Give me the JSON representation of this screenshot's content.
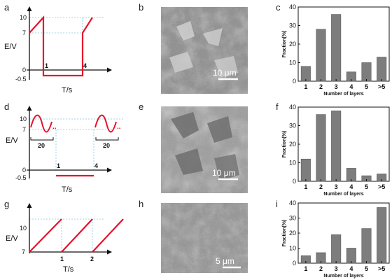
{
  "panel_labels": [
    "a",
    "b",
    "c",
    "d",
    "e",
    "f",
    "g",
    "h",
    "i"
  ],
  "colors": {
    "waveform": "#e8102a",
    "guide": "#7ec8e3",
    "bar": "#7d7d7d",
    "axis": "#111111"
  },
  "waveforms": {
    "a": {
      "ylabel": "E/V",
      "xlabel": "T/s",
      "y_ticks": [
        "10",
        "7",
        "0",
        "-0.5"
      ],
      "x_ticks": [
        "1",
        "4"
      ]
    },
    "d": {
      "ylabel": "E/V",
      "xlabel": "T/s",
      "y_ticks": [
        "10",
        "7",
        "0",
        "-0.5"
      ],
      "x_ticks": [
        "1",
        "4"
      ],
      "dots": "..",
      "periods": [
        "20",
        "20"
      ]
    },
    "g": {
      "ylabel": "E/V",
      "xlabel": "T/s",
      "y_ticks": [
        "10",
        "7"
      ],
      "x_ticks": [
        "1",
        "2"
      ]
    }
  },
  "micrographs": {
    "b": {
      "scale_label": "10 μm"
    },
    "e": {
      "scale_label": "10 μm"
    },
    "h": {
      "scale_label": "5 μm"
    }
  },
  "chart_data": [
    {
      "panel": "c",
      "type": "bar",
      "categories": [
        "1",
        "2",
        "3",
        "4",
        "5",
        ">5"
      ],
      "values": [
        8,
        28,
        36,
        5,
        10,
        13
      ],
      "xlabel": "Number of layers",
      "ylabel": "Fraction(%)",
      "ylim": [
        0,
        40
      ],
      "yticks": [
        0,
        10,
        20,
        30,
        40
      ]
    },
    {
      "panel": "f",
      "type": "bar",
      "categories": [
        "1",
        "2",
        "3",
        "4",
        "5",
        ">5"
      ],
      "values": [
        12,
        36,
        38,
        7,
        3,
        4
      ],
      "xlabel": "Number of layers",
      "ylabel": "Fraction(%)",
      "ylim": [
        0,
        40
      ],
      "yticks": [
        0,
        10,
        20,
        30,
        40
      ]
    },
    {
      "panel": "i",
      "type": "bar",
      "categories": [
        "1",
        "2",
        "3",
        "4",
        "5",
        ">5"
      ],
      "values": [
        5,
        7,
        19,
        10,
        23,
        37
      ],
      "xlabel": "Number of layers",
      "ylabel": "Fraction(%)",
      "ylim": [
        0,
        40
      ],
      "yticks": [
        0,
        10,
        20,
        30,
        40
      ]
    }
  ]
}
